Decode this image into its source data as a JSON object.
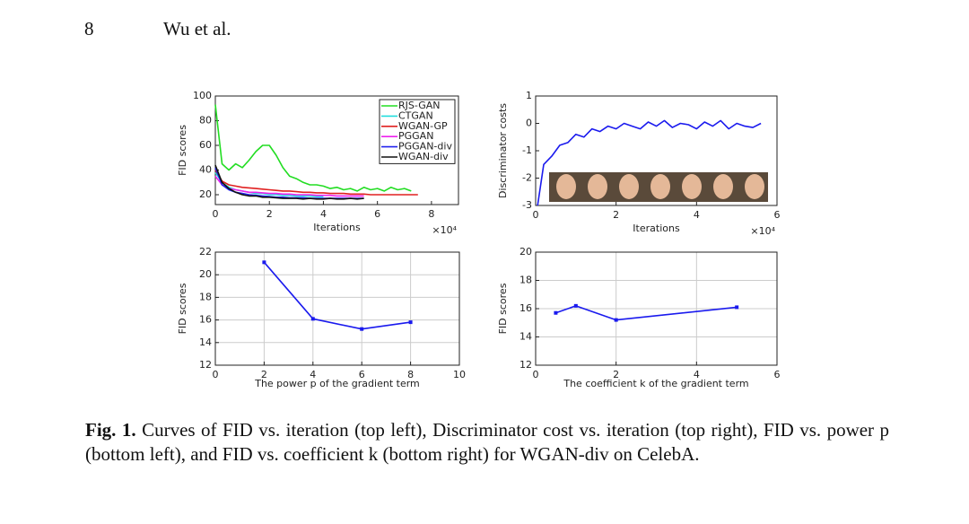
{
  "header": {
    "page_number": "8",
    "authors": "Wu et al."
  },
  "chart_data": [
    {
      "type": "line",
      "xlabel": "Iterations",
      "ylabel": "FID scores",
      "x_multiplier": "×10⁴",
      "x": [
        0,
        0.25,
        0.5,
        0.75,
        1,
        1.25,
        1.5,
        1.75,
        2,
        2.25,
        2.5,
        2.75,
        3,
        3.25,
        3.5,
        3.75,
        4,
        4.25,
        4.5,
        4.75,
        5,
        5.25,
        5.5,
        5.75,
        6,
        6.25,
        6.5,
        6.75,
        7,
        7.25,
        7.5
      ],
      "series": [
        {
          "name": "RJS-GAN",
          "color": "#22dd22",
          "values": [
            93,
            45,
            40,
            45,
            42,
            48,
            55,
            60,
            60,
            52,
            42,
            35,
            33,
            30,
            28,
            28,
            27,
            25,
            26,
            24,
            25,
            23,
            26,
            24,
            25,
            23,
            26,
            24,
            25,
            23,
            null
          ]
        },
        {
          "name": "CTGAN",
          "color": "#22dddd",
          "values": [
            38,
            30,
            26,
            24,
            23,
            22,
            21,
            21,
            20,
            20,
            19.5,
            19.5,
            19,
            19,
            19,
            18.5,
            18.5,
            null,
            null,
            null,
            null,
            null,
            null,
            null,
            null,
            null,
            null,
            null,
            null,
            null,
            null
          ]
        },
        {
          "name": "WGAN-GP",
          "color": "#e02020",
          "values": [
            40,
            31,
            28,
            27,
            26,
            25.5,
            25,
            24.5,
            24,
            23.5,
            23,
            23,
            22.5,
            22,
            22,
            21.5,
            21.5,
            21,
            21,
            21,
            20.5,
            20.5,
            20.5,
            20,
            20,
            20,
            20,
            20,
            20,
            20,
            20
          ]
        },
        {
          "name": "PGGAN",
          "color": "#ee22ee",
          "values": [
            35,
            28,
            25,
            24,
            23,
            22,
            22,
            21.5,
            21,
            21,
            20.5,
            20.5,
            20,
            20,
            20,
            19.5,
            19.5,
            19.5,
            19,
            19,
            19,
            19,
            19,
            null,
            null,
            null,
            null,
            null,
            null,
            null,
            null
          ]
        },
        {
          "name": "PGGAN-div",
          "color": "#2222ee",
          "values": [
            42,
            28,
            24,
            22,
            21,
            20,
            19.5,
            19,
            18.5,
            18,
            18,
            17.5,
            17.5,
            17.5,
            17,
            17,
            17,
            17,
            17,
            17,
            17,
            17,
            17,
            null,
            null,
            null,
            null,
            null,
            null,
            null,
            null
          ]
        },
        {
          "name": "WGAN-div",
          "color": "#111111",
          "values": [
            44,
            30,
            25,
            22,
            20,
            19,
            19,
            18,
            18,
            17.5,
            17,
            17,
            17,
            16.5,
            17,
            16.5,
            16.5,
            17,
            16.5,
            16.5,
            17,
            16.5,
            17,
            null,
            null,
            null,
            null,
            null,
            null,
            null,
            null
          ]
        }
      ],
      "xlim": [
        0,
        9
      ],
      "xticks": [
        0,
        2,
        4,
        6,
        8
      ],
      "ylim": [
        12,
        100
      ],
      "yticks": [
        20,
        40,
        60,
        80,
        100
      ],
      "grid": false,
      "legend": "upper right"
    },
    {
      "type": "line",
      "xlabel": "Iterations",
      "ylabel": "Discriminator costs",
      "x_multiplier": "×10⁴",
      "x": [
        0.05,
        0.2,
        0.4,
        0.6,
        0.8,
        1,
        1.2,
        1.4,
        1.6,
        1.8,
        2,
        2.2,
        2.4,
        2.6,
        2.8,
        3,
        3.2,
        3.4,
        3.6,
        3.8,
        4,
        4.2,
        4.4,
        4.6,
        4.8,
        5,
        5.2,
        5.4,
        5.6
      ],
      "series": [
        {
          "color": "#1a1aee",
          "values": [
            -3,
            -1.5,
            -1.2,
            -0.8,
            -0.7,
            -0.4,
            -0.5,
            -0.2,
            -0.3,
            -0.1,
            -0.2,
            0,
            -0.1,
            -0.2,
            0.05,
            -0.1,
            0.1,
            -0.15,
            0,
            -0.05,
            -0.2,
            0.05,
            -0.1,
            0.1,
            -0.2,
            0,
            -0.1,
            -0.15,
            0
          ]
        }
      ],
      "xlim": [
        0,
        6
      ],
      "xticks": [
        0,
        2,
        4,
        6
      ],
      "ylim": [
        -3,
        1
      ],
      "yticks": [
        -3,
        -2,
        -1,
        0,
        1
      ],
      "grid": false
    },
    {
      "type": "line",
      "xlabel": "The power p of the gradient term",
      "ylabel": "FID scores",
      "x": [
        2,
        4,
        6,
        8
      ],
      "series": [
        {
          "color": "#1a1aee",
          "values": [
            21.1,
            16.1,
            15.2,
            15.8
          ]
        }
      ],
      "xlim": [
        0,
        10
      ],
      "xticks": [
        0,
        2,
        4,
        6,
        8,
        10
      ],
      "ylim": [
        12,
        22
      ],
      "yticks": [
        12,
        14,
        16,
        18,
        20,
        22
      ],
      "grid": true,
      "marker": "square"
    },
    {
      "type": "line",
      "xlabel": "The coefficient k of the gradient term",
      "ylabel": "FID scores",
      "x": [
        0.5,
        1,
        2,
        5
      ],
      "series": [
        {
          "color": "#1a1aee",
          "values": [
            15.7,
            16.2,
            15.2,
            16.1
          ]
        }
      ],
      "xlim": [
        0,
        6
      ],
      "xticks": [
        0,
        2,
        4,
        6
      ],
      "ylim": [
        12,
        20
      ],
      "yticks": [
        12,
        14,
        16,
        18,
        20
      ],
      "grid": true,
      "marker": "square"
    }
  ],
  "caption": {
    "label": "Fig. 1.",
    "text": "Curves of FID vs. iteration (top left), Discriminator cost vs. iteration (top right), FID vs. power p (bottom left), and FID vs. coefficient k (bottom right) for WGAN-div on CelebA."
  }
}
